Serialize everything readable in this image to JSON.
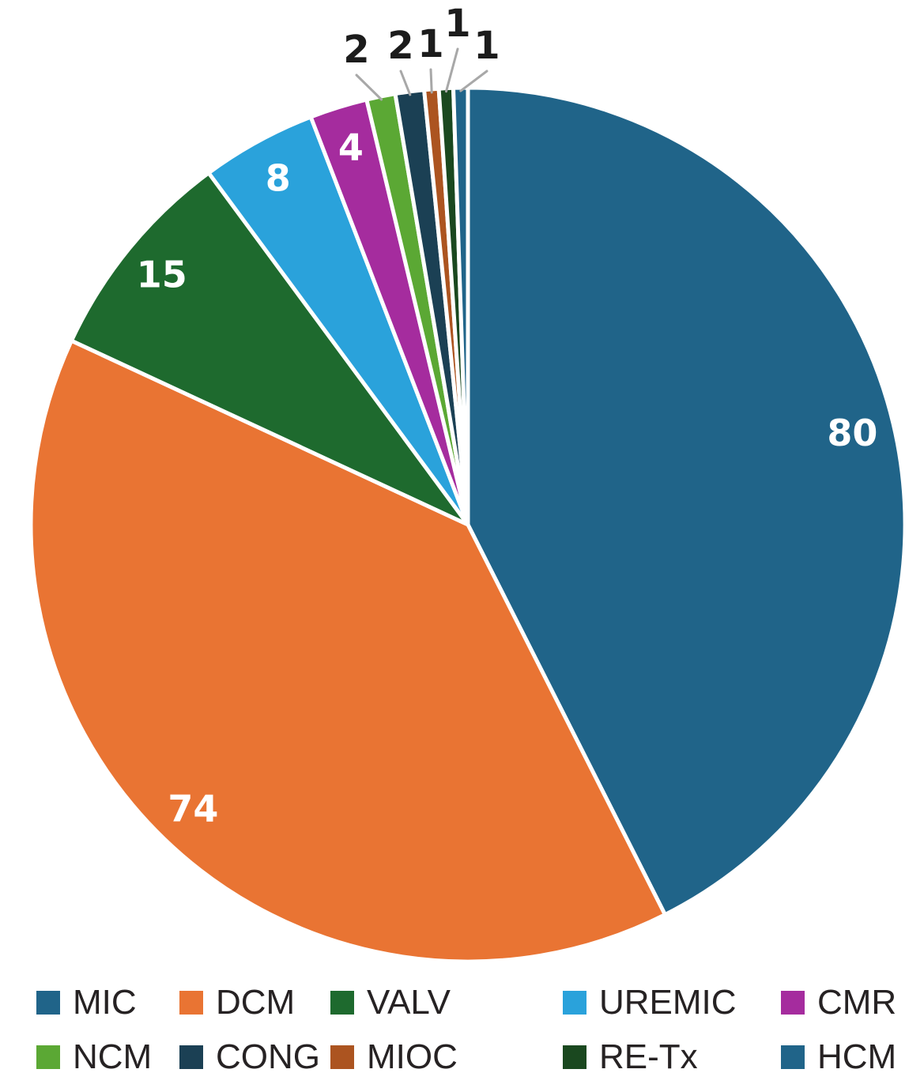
{
  "chart_data": {
    "type": "pie",
    "direction": "clockwise",
    "start_angle_deg": 0,
    "grid": false,
    "legend_position": "bottom",
    "inside_label_color": "#FFFFFF",
    "outside_label_color": "#1C1C1C",
    "leader_line_color": "#A8A8A8",
    "background_color": "#FFFFFF",
    "slices": [
      {
        "label": "MIC",
        "value": 80,
        "color": "#206489",
        "label_placement": "inside"
      },
      {
        "label": "DCM",
        "value": 74,
        "color": "#E97433",
        "label_placement": "inside"
      },
      {
        "label": "VALV",
        "value": 15,
        "color": "#1E6A2E",
        "label_placement": "inside"
      },
      {
        "label": "UREMIC",
        "value": 8,
        "color": "#2AA2DB",
        "label_placement": "inside"
      },
      {
        "label": "CMR",
        "value": 4,
        "color": "#A52C9E",
        "label_placement": "inside"
      },
      {
        "label": "NCM",
        "value": 2,
        "color": "#5BA834",
        "label_placement": "outside"
      },
      {
        "label": "CONG",
        "value": 2,
        "color": "#1B4054",
        "label_placement": "outside"
      },
      {
        "label": "MIOC",
        "value": 1,
        "color": "#AC5420",
        "label_placement": "outside"
      },
      {
        "label": "RE-Tx",
        "value": 1,
        "color": "#1A481F",
        "label_placement": "outside"
      },
      {
        "label": "HCM",
        "value": 1,
        "color": "#206489",
        "label_placement": "outside"
      }
    ],
    "legend_rows": [
      [
        "MIC",
        "DCM",
        "VALV",
        "UREMIC",
        "CMR"
      ],
      [
        "NCM",
        "CONG",
        "MIOC",
        "RE-Tx",
        "HCM"
      ]
    ]
  }
}
